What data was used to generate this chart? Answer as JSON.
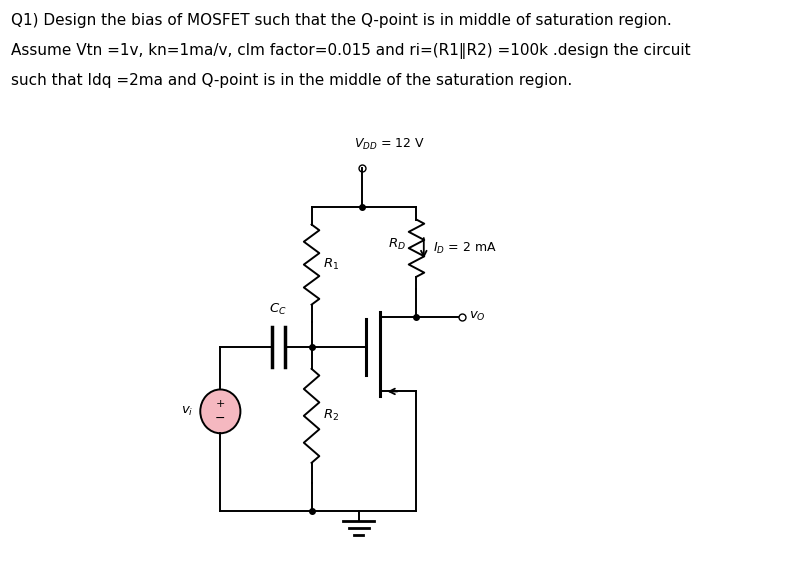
{
  "title_line1": "Q1) Design the bias of MOSFET such that the Q-point is in middle of saturation region.",
  "title_line2": "Assume Vtn =1v, kn=1ma/v, clm factor=0.015 and ri=(R1‖R2) =100k .design the circuit",
  "title_line3": "such that Idq =2ma and Q-point is in the middle of the saturation region.",
  "vdd_label": "$V_{DD}$ = 12 V",
  "rd_label": "$R_D$",
  "id_label": "$I_D$ = 2 mA",
  "r1_label": "$R_1$",
  "cc_label": "$C_C$",
  "r2_label": "$R_2$",
  "vi_label": "$v_i$",
  "vo_label": "$v_O$",
  "bg_color": "#ffffff",
  "text_color": "#000000",
  "line_color": "#000000",
  "source_fill": "#f5b8c0",
  "title_fontsize": 11.0,
  "label_fontsize": 9.5
}
